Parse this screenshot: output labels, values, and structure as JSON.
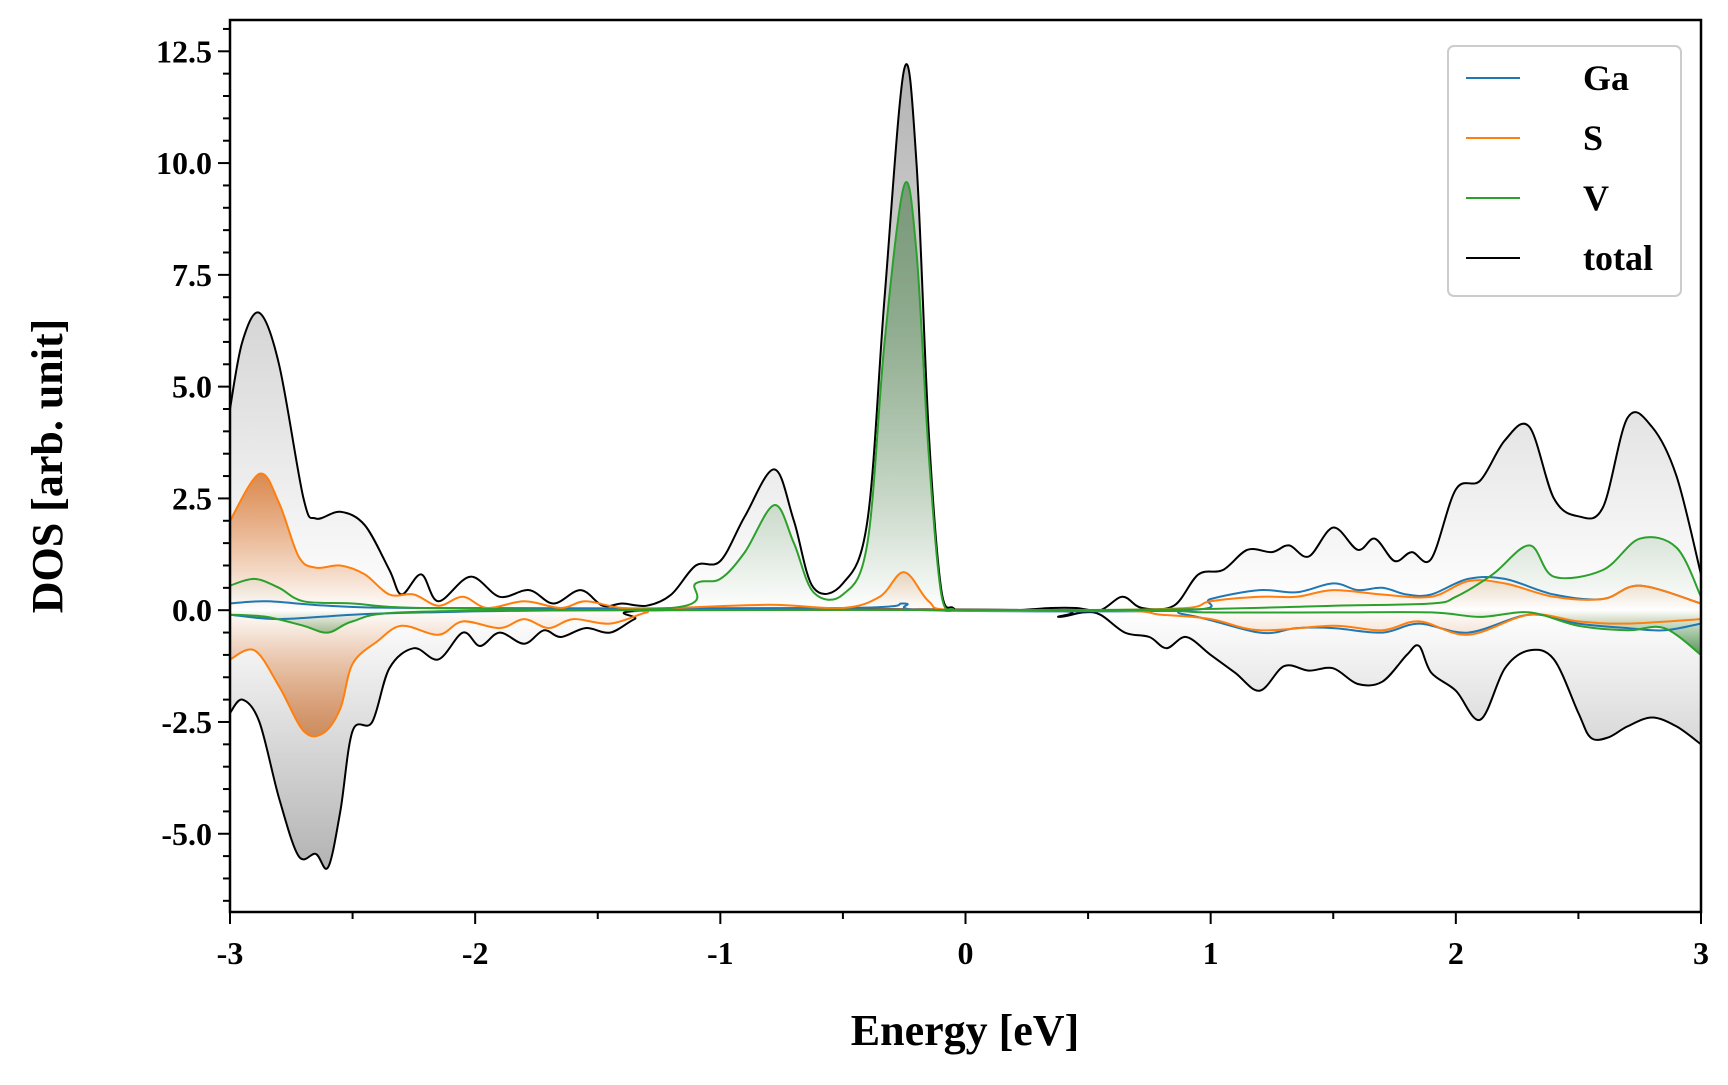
{
  "chart_data": {
    "type": "line",
    "title": "",
    "xlabel": "Energy [eV]",
    "ylabel": "DOS [arb. unit]",
    "xlim": [
      -3,
      3
    ],
    "ylim": [
      -6.75,
      13.2
    ],
    "xticks": [
      -3,
      -2,
      -1,
      0,
      1,
      2,
      3
    ],
    "xtick_labels": [
      "-3",
      "-2",
      "-1",
      "0",
      "1",
      "2",
      "3"
    ],
    "yticks": [
      -5,
      -2.5,
      0,
      2.5,
      5,
      7.5,
      10,
      12.5
    ],
    "ytick_labels": [
      "-5.0",
      "-2.5",
      "0.0",
      "2.5",
      "5.0",
      "7.5",
      "10.0",
      "12.5"
    ],
    "grid": false,
    "legend_position": "top-right",
    "series": [
      {
        "name": "Ga",
        "color": "#1f77b4",
        "fill": false,
        "up": [
          [
            -3,
            0.15
          ],
          [
            -2.85,
            0.2
          ],
          [
            -2.6,
            0.1
          ],
          [
            -2.2,
            0.05
          ],
          [
            -0.5,
            0.05
          ],
          [
            -0.25,
            0.15
          ],
          [
            -0.15,
            0
          ],
          [
            0.9,
            0
          ],
          [
            1.0,
            0.25
          ],
          [
            1.2,
            0.45
          ],
          [
            1.35,
            0.4
          ],
          [
            1.5,
            0.6
          ],
          [
            1.6,
            0.45
          ],
          [
            1.7,
            0.5
          ],
          [
            1.8,
            0.35
          ],
          [
            1.9,
            0.35
          ],
          [
            2.05,
            0.7
          ],
          [
            2.2,
            0.7
          ],
          [
            2.4,
            0.35
          ],
          [
            2.6,
            0.25
          ],
          [
            2.75,
            0.55
          ],
          [
            3.0,
            0.15
          ]
        ],
        "down": [
          [
            -3,
            -0.1
          ],
          [
            -2.8,
            -0.2
          ],
          [
            -2.5,
            -0.1
          ],
          [
            -2.2,
            -0.05
          ],
          [
            -1.5,
            0
          ],
          [
            0.6,
            0
          ],
          [
            0.9,
            -0.1
          ],
          [
            1.2,
            -0.5
          ],
          [
            1.35,
            -0.4
          ],
          [
            1.5,
            -0.4
          ],
          [
            1.7,
            -0.5
          ],
          [
            1.85,
            -0.3
          ],
          [
            2.05,
            -0.5
          ],
          [
            2.3,
            -0.1
          ],
          [
            2.5,
            -0.3
          ],
          [
            2.7,
            -0.4
          ],
          [
            2.85,
            -0.45
          ],
          [
            3.0,
            -0.3
          ]
        ]
      },
      {
        "name": "S",
        "color": "#ff7f0e",
        "fill": true,
        "up": [
          [
            -3,
            2.0
          ],
          [
            -2.88,
            3.05
          ],
          [
            -2.8,
            2.4
          ],
          [
            -2.72,
            1.2
          ],
          [
            -2.65,
            0.95
          ],
          [
            -2.55,
            1.0
          ],
          [
            -2.45,
            0.8
          ],
          [
            -2.35,
            0.35
          ],
          [
            -2.25,
            0.35
          ],
          [
            -2.15,
            0.1
          ],
          [
            -2.05,
            0.3
          ],
          [
            -1.95,
            0.05
          ],
          [
            -1.8,
            0.2
          ],
          [
            -1.65,
            0.05
          ],
          [
            -1.55,
            0.2
          ],
          [
            -1.4,
            0.05
          ],
          [
            -1.2,
            0.05
          ],
          [
            -0.8,
            0.12
          ],
          [
            -0.5,
            0.05
          ],
          [
            -0.35,
            0.3
          ],
          [
            -0.25,
            0.85
          ],
          [
            -0.15,
            0.2
          ],
          [
            -0.05,
            0
          ],
          [
            0.5,
            0
          ],
          [
            0.9,
            0.05
          ],
          [
            1.0,
            0.2
          ],
          [
            1.2,
            0.3
          ],
          [
            1.35,
            0.3
          ],
          [
            1.5,
            0.45
          ],
          [
            1.7,
            0.35
          ],
          [
            1.9,
            0.3
          ],
          [
            2.05,
            0.65
          ],
          [
            2.2,
            0.6
          ],
          [
            2.4,
            0.3
          ],
          [
            2.6,
            0.25
          ],
          [
            2.75,
            0.55
          ],
          [
            3.0,
            0.15
          ]
        ],
        "down": [
          [
            -3,
            -1.1
          ],
          [
            -2.9,
            -0.9
          ],
          [
            -2.8,
            -1.7
          ],
          [
            -2.7,
            -2.7
          ],
          [
            -2.62,
            -2.75
          ],
          [
            -2.55,
            -2.2
          ],
          [
            -2.5,
            -1.2
          ],
          [
            -2.4,
            -0.7
          ],
          [
            -2.3,
            -0.35
          ],
          [
            -2.15,
            -0.55
          ],
          [
            -2.05,
            -0.25
          ],
          [
            -1.9,
            -0.4
          ],
          [
            -1.8,
            -0.2
          ],
          [
            -1.7,
            -0.4
          ],
          [
            -1.6,
            -0.2
          ],
          [
            -1.45,
            -0.3
          ],
          [
            -1.3,
            -0.05
          ],
          [
            -1.2,
            0
          ],
          [
            0.5,
            0
          ],
          [
            0.8,
            -0.1
          ],
          [
            1.0,
            -0.2
          ],
          [
            1.2,
            -0.45
          ],
          [
            1.5,
            -0.35
          ],
          [
            1.7,
            -0.45
          ],
          [
            1.85,
            -0.25
          ],
          [
            2.05,
            -0.55
          ],
          [
            2.3,
            -0.1
          ],
          [
            2.5,
            -0.25
          ],
          [
            2.7,
            -0.3
          ],
          [
            3.0,
            -0.2
          ]
        ]
      },
      {
        "name": "V",
        "color": "#2ca02c",
        "fill": true,
        "up": [
          [
            -3,
            0.55
          ],
          [
            -2.9,
            0.7
          ],
          [
            -2.8,
            0.5
          ],
          [
            -2.7,
            0.2
          ],
          [
            -2.5,
            0.15
          ],
          [
            -2.2,
            0.05
          ],
          [
            -1.2,
            0.05
          ],
          [
            -1.1,
            0.6
          ],
          [
            -1.0,
            0.7
          ],
          [
            -0.9,
            1.3
          ],
          [
            -0.78,
            2.35
          ],
          [
            -0.7,
            1.5
          ],
          [
            -0.62,
            0.4
          ],
          [
            -0.5,
            0.35
          ],
          [
            -0.4,
            1.5
          ],
          [
            -0.33,
            6.0
          ],
          [
            -0.25,
            9.5
          ],
          [
            -0.2,
            8.0
          ],
          [
            -0.15,
            3.5
          ],
          [
            -0.1,
            0.4
          ],
          [
            -0.05,
            0.02
          ],
          [
            0,
            0
          ],
          [
            0.9,
            0.02
          ],
          [
            1.5,
            0.1
          ],
          [
            1.9,
            0.15
          ],
          [
            2.0,
            0.3
          ],
          [
            2.15,
            0.8
          ],
          [
            2.3,
            1.45
          ],
          [
            2.4,
            0.75
          ],
          [
            2.6,
            0.9
          ],
          [
            2.75,
            1.6
          ],
          [
            2.9,
            1.4
          ],
          [
            3.0,
            0.3
          ]
        ],
        "down": [
          [
            -3,
            -0.1
          ],
          [
            -2.85,
            -0.15
          ],
          [
            -2.7,
            -0.35
          ],
          [
            -2.6,
            -0.5
          ],
          [
            -2.5,
            -0.25
          ],
          [
            -2.3,
            -0.05
          ],
          [
            -1.5,
            0
          ],
          [
            0.6,
            0
          ],
          [
            1.0,
            -0.05
          ],
          [
            1.5,
            -0.05
          ],
          [
            1.9,
            -0.05
          ],
          [
            2.1,
            -0.15
          ],
          [
            2.3,
            -0.05
          ],
          [
            2.5,
            -0.35
          ],
          [
            2.7,
            -0.45
          ],
          [
            2.85,
            -0.4
          ],
          [
            3.0,
            -1.0
          ]
        ]
      },
      {
        "name": "total",
        "color": "#000000",
        "fill": true,
        "up": [
          [
            -3,
            4.5
          ],
          [
            -2.95,
            6.0
          ],
          [
            -2.88,
            6.65
          ],
          [
            -2.8,
            5.5
          ],
          [
            -2.7,
            2.5
          ],
          [
            -2.65,
            2.05
          ],
          [
            -2.55,
            2.2
          ],
          [
            -2.45,
            1.9
          ],
          [
            -2.35,
            0.9
          ],
          [
            -2.3,
            0.35
          ],
          [
            -2.22,
            0.8
          ],
          [
            -2.15,
            0.2
          ],
          [
            -2.02,
            0.75
          ],
          [
            -1.9,
            0.3
          ],
          [
            -1.78,
            0.45
          ],
          [
            -1.68,
            0.15
          ],
          [
            -1.57,
            0.45
          ],
          [
            -1.48,
            0.1
          ],
          [
            -1.4,
            0.15
          ],
          [
            -1.3,
            0.1
          ],
          [
            -1.2,
            0.35
          ],
          [
            -1.1,
            1.0
          ],
          [
            -1.0,
            1.1
          ],
          [
            -0.9,
            2.1
          ],
          [
            -0.78,
            3.15
          ],
          [
            -0.7,
            2.0
          ],
          [
            -0.62,
            0.5
          ],
          [
            -0.5,
            0.6
          ],
          [
            -0.4,
            2.0
          ],
          [
            -0.33,
            7.0
          ],
          [
            -0.25,
            12.1
          ],
          [
            -0.2,
            10.0
          ],
          [
            -0.15,
            4.0
          ],
          [
            -0.1,
            0.5
          ],
          [
            -0.05,
            0.05
          ],
          [
            0,
            0
          ],
          [
            0.2,
            0
          ],
          [
            0.35,
            0.05
          ],
          [
            0.45,
            0.05
          ],
          [
            0.55,
            0
          ],
          [
            0.64,
            0.3
          ],
          [
            0.72,
            0.05
          ],
          [
            0.85,
            0.1
          ],
          [
            0.95,
            0.8
          ],
          [
            1.05,
            0.9
          ],
          [
            1.15,
            1.35
          ],
          [
            1.25,
            1.3
          ],
          [
            1.32,
            1.45
          ],
          [
            1.4,
            1.2
          ],
          [
            1.5,
            1.85
          ],
          [
            1.6,
            1.35
          ],
          [
            1.67,
            1.6
          ],
          [
            1.75,
            1.1
          ],
          [
            1.82,
            1.3
          ],
          [
            1.9,
            1.15
          ],
          [
            2.0,
            2.7
          ],
          [
            2.1,
            2.9
          ],
          [
            2.2,
            3.8
          ],
          [
            2.3,
            4.1
          ],
          [
            2.4,
            2.5
          ],
          [
            2.5,
            2.1
          ],
          [
            2.6,
            2.3
          ],
          [
            2.7,
            4.3
          ],
          [
            2.8,
            4.1
          ],
          [
            2.9,
            3.0
          ],
          [
            3.0,
            0.8
          ]
        ],
        "down": [
          [
            -3,
            -2.3
          ],
          [
            -2.95,
            -2.0
          ],
          [
            -2.88,
            -2.5
          ],
          [
            -2.8,
            -4.2
          ],
          [
            -2.72,
            -5.5
          ],
          [
            -2.65,
            -5.45
          ],
          [
            -2.6,
            -5.75
          ],
          [
            -2.55,
            -4.5
          ],
          [
            -2.5,
            -2.7
          ],
          [
            -2.42,
            -2.5
          ],
          [
            -2.35,
            -1.3
          ],
          [
            -2.25,
            -0.85
          ],
          [
            -2.15,
            -1.1
          ],
          [
            -2.05,
            -0.5
          ],
          [
            -1.98,
            -0.8
          ],
          [
            -1.9,
            -0.5
          ],
          [
            -1.8,
            -0.75
          ],
          [
            -1.72,
            -0.45
          ],
          [
            -1.65,
            -0.6
          ],
          [
            -1.55,
            -0.4
          ],
          [
            -1.45,
            -0.5
          ],
          [
            -1.35,
            -0.2
          ],
          [
            -1.25,
            0
          ],
          [
            0.3,
            0
          ],
          [
            0.38,
            -0.15
          ],
          [
            0.48,
            -0.05
          ],
          [
            0.55,
            -0.1
          ],
          [
            0.65,
            -0.5
          ],
          [
            0.75,
            -0.6
          ],
          [
            0.82,
            -0.85
          ],
          [
            0.9,
            -0.6
          ],
          [
            1.0,
            -1.0
          ],
          [
            1.1,
            -1.4
          ],
          [
            1.2,
            -1.8
          ],
          [
            1.3,
            -1.25
          ],
          [
            1.4,
            -1.35
          ],
          [
            1.5,
            -1.3
          ],
          [
            1.6,
            -1.65
          ],
          [
            1.7,
            -1.6
          ],
          [
            1.8,
            -1.0
          ],
          [
            1.85,
            -0.8
          ],
          [
            1.9,
            -1.4
          ],
          [
            2.0,
            -1.8
          ],
          [
            2.1,
            -2.45
          ],
          [
            2.2,
            -1.3
          ],
          [
            2.3,
            -0.9
          ],
          [
            2.4,
            -1.1
          ],
          [
            2.5,
            -2.3
          ],
          [
            2.55,
            -2.85
          ],
          [
            2.62,
            -2.85
          ],
          [
            2.7,
            -2.6
          ],
          [
            2.8,
            -2.4
          ],
          [
            2.9,
            -2.6
          ],
          [
            3.0,
            -3.0
          ]
        ]
      }
    ]
  }
}
